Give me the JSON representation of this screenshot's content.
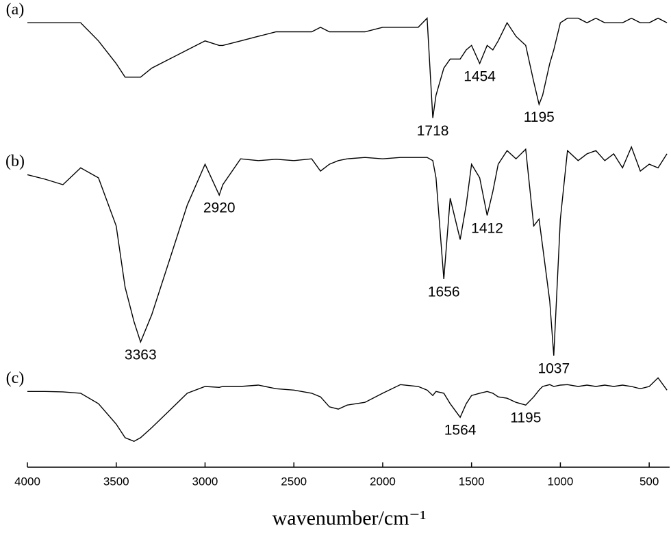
{
  "chart_data": {
    "type": "line",
    "xlabel": "wavenumber/cm⁻¹",
    "xlim": [
      4000,
      385
    ],
    "ylim": [
      0,
      100
    ],
    "xticks": [
      4000,
      3500,
      3000,
      2500,
      2000,
      1500,
      1000,
      500
    ],
    "x": [
      4000,
      3900,
      3800,
      3700,
      3600,
      3500,
      3450,
      3400,
      3363,
      3300,
      3200,
      3100,
      3000,
      2920,
      2900,
      2800,
      2700,
      2600,
      2500,
      2400,
      2350,
      2300,
      2250,
      2200,
      2100,
      2000,
      1900,
      1800,
      1750,
      1718,
      1700,
      1656,
      1620,
      1564,
      1530,
      1500,
      1454,
      1412,
      1380,
      1350,
      1300,
      1250,
      1195,
      1150,
      1120,
      1100,
      1060,
      1037,
      1000,
      960,
      900,
      850,
      800,
      750,
      700,
      650,
      600,
      550,
      500,
      450,
      400
    ],
    "series": [
      {
        "name": "(a)",
        "color": "#000000",
        "peaks": [
          1718,
          1454,
          1195
        ],
        "values": [
          98,
          98,
          98,
          98,
          94,
          89,
          86,
          86,
          86,
          88,
          90,
          92,
          94,
          93,
          93,
          94,
          95,
          96,
          96,
          96,
          97,
          96,
          96,
          96,
          96,
          97,
          97,
          97,
          99,
          77,
          82,
          88,
          90,
          90,
          92,
          93,
          89,
          93,
          92,
          94,
          98,
          95,
          93,
          85,
          80,
          82,
          89,
          92,
          98,
          99,
          99,
          98,
          99,
          98,
          98,
          98,
          99,
          98,
          98,
          99,
          98
        ]
      },
      {
        "name": "(b)",
        "color": "#000000",
        "peaks": [
          3363,
          2920,
          1656,
          1412,
          1037
        ],
        "values": [
          64.5,
          63.5,
          62.3,
          66,
          63.8,
          53.2,
          39.7,
          32.1,
          27.6,
          33.6,
          45.7,
          57.8,
          66.8,
          60,
          62.3,
          68,
          67.6,
          67.9,
          67.6,
          68,
          65.3,
          66.8,
          67.6,
          68,
          68.3,
          68,
          68.3,
          68.3,
          68.3,
          67.6,
          63.8,
          41.5,
          59.3,
          50.2,
          57.8,
          66.8,
          63.8,
          55.5,
          60.8,
          66.8,
          69.8,
          68,
          70.1,
          53.2,
          54.7,
          48.7,
          36.6,
          24.6,
          54.7,
          69.8,
          67.6,
          69.1,
          69.8,
          67.6,
          69.1,
          66,
          70.6,
          65.3,
          66.8,
          66,
          69.1
        ]
      },
      {
        "name": "(c)",
        "color": "#000000",
        "peaks": [
          1564,
          1195
        ],
        "values": [
          16.7,
          16.7,
          16.6,
          16.3,
          14,
          9.5,
          6.5,
          5.7,
          6.5,
          8.7,
          12.5,
          16.3,
          17.8,
          17.6,
          17.8,
          17.8,
          18.1,
          17.3,
          17,
          16.3,
          15.5,
          13.3,
          12.8,
          13.7,
          14.3,
          16.3,
          18.2,
          17.8,
          17,
          15.8,
          16.7,
          16.3,
          14,
          11,
          14,
          15.8,
          16.3,
          16.7,
          16.3,
          15.5,
          15.2,
          14.3,
          13.7,
          15.5,
          17,
          17.8,
          18.2,
          17.8,
          18.1,
          18.2,
          17.8,
          18.1,
          17.8,
          18.1,
          17.8,
          18.1,
          17.8,
          17.3,
          17.8,
          19.7,
          17
        ]
      }
    ]
  }
}
